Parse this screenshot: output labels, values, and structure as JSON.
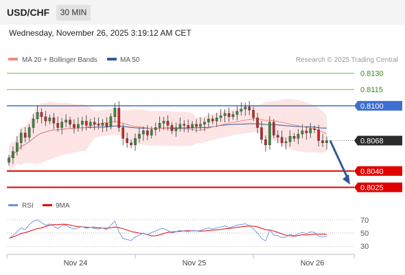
{
  "header": {
    "symbol": "USD/CHF",
    "timeframe": "30 MIN",
    "datetime": "Wednesday, November 26, 2025 3:19:12 AM CET"
  },
  "credit": "Research © 2025 Trading Central",
  "colors": {
    "candle_up": "#3b8a3b",
    "candle_down": "#c62828",
    "bollinger_fill": "#fde0e0",
    "ma20": "#f28b82",
    "ma50": "#2f5a9b",
    "resistance": "#6dbf3f",
    "pivot": "#3d6fd1",
    "support": "#e00000",
    "rsi": "#6b8fe0",
    "rsi_ma": "#e00000",
    "arrow": "#2f5a9b"
  },
  "chart_data": [
    {
      "type": "candlestick",
      "title": "",
      "legend": [
        {
          "name": "MA 20 + Bollinger Bands",
          "color": "#f28b82"
        },
        {
          "name": "MA 50",
          "color": "#2f5a9b"
        }
      ],
      "legend_position": "top-left",
      "x_ticks": [
        "Nov 24",
        "Nov 25",
        "Nov 26"
      ],
      "ylim": [
        0.8017,
        0.8137
      ],
      "price_levels": [
        {
          "label": "0.8130",
          "value": 0.813,
          "kind": "resistance"
        },
        {
          "label": "0.8115",
          "value": 0.8115,
          "kind": "resistance"
        },
        {
          "label": "0.8100",
          "value": 0.81,
          "kind": "pivot"
        },
        {
          "label": "0.8068",
          "value": 0.8068,
          "kind": "current"
        },
        {
          "label": "0.8040",
          "value": 0.804,
          "kind": "support"
        },
        {
          "label": "0.8025",
          "value": 0.8025,
          "kind": "support"
        }
      ],
      "last_price": 0.8068,
      "forecast_target": 0.8025,
      "candles_close_estimate": [
        0.8052,
        0.8058,
        0.8066,
        0.8075,
        0.8071,
        0.808,
        0.8088,
        0.8094,
        0.809,
        0.8086,
        0.8089,
        0.8084,
        0.808,
        0.8085,
        0.8087,
        0.8083,
        0.808,
        0.8083,
        0.8086,
        0.8082,
        0.8085,
        0.8083,
        0.8082,
        0.8084,
        0.8081,
        0.809,
        0.8098,
        0.808,
        0.807,
        0.8066,
        0.8064,
        0.807,
        0.8074,
        0.8077,
        0.8073,
        0.8078,
        0.808,
        0.8084,
        0.8086,
        0.8082,
        0.8077,
        0.808,
        0.8083,
        0.8082,
        0.808,
        0.8083,
        0.8081,
        0.8083,
        0.8085,
        0.8088,
        0.8086,
        0.8089,
        0.8091,
        0.8093,
        0.809,
        0.8092,
        0.8095,
        0.8097,
        0.8099,
        0.8096,
        0.8089,
        0.808,
        0.8069,
        0.8064,
        0.8085,
        0.8073,
        0.8071,
        0.8066,
        0.8067,
        0.8072,
        0.807,
        0.8074,
        0.8077,
        0.8075,
        0.8079,
        0.8078,
        0.8068,
        0.8066,
        0.8068
      ]
    },
    {
      "type": "line",
      "title": "",
      "legend": [
        {
          "name": "RSI",
          "color": "#6b8fe0"
        },
        {
          "name": "9MA",
          "color": "#e00000"
        }
      ],
      "legend_position": "top-left",
      "y_ticks": [
        "70",
        "50",
        "30"
      ],
      "ylim": [
        25,
        75
      ],
      "rsi_estimate": [
        42,
        46,
        52,
        58,
        55,
        63,
        68,
        70,
        66,
        62,
        64,
        60,
        57,
        61,
        62,
        58,
        56,
        58,
        60,
        57,
        59,
        57,
        56,
        58,
        55,
        62,
        68,
        52,
        42,
        40,
        39,
        44,
        47,
        50,
        47,
        51,
        53,
        56,
        57,
        54,
        50,
        52,
        54,
        53,
        52,
        54,
        53,
        54,
        56,
        58,
        56,
        58,
        59,
        61,
        58,
        60,
        62,
        63,
        64,
        61,
        56,
        50,
        42,
        38,
        55,
        47,
        46,
        43,
        44,
        48,
        46,
        49,
        51,
        49,
        52,
        51,
        45,
        44,
        45
      ]
    }
  ]
}
